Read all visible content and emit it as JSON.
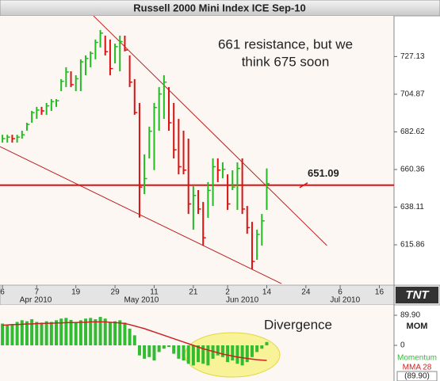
{
  "chart_data": [
    {
      "type": "ohlc",
      "title": "Russell 2000 Mini Index ICE Sep-10",
      "high": [
        680.9,
        680.9,
        680.9,
        680.9,
        683.3,
        688.0,
        695.0,
        697.4,
        697.4,
        699.7,
        702.0,
        702.0,
        713.8,
        720.8,
        718.4,
        716.1,
        725.5,
        727.8,
        730.2,
        737.2,
        742.8,
        739.5,
        737.2,
        734.8,
        739.5,
        739.5,
        727.8,
        713.8,
        699.7,
        669.3,
        685.7,
        699.7,
        709.1,
        716.1,
        709.1,
        699.7,
        690.3,
        683.3,
        678.6,
        650.5,
        648.2,
        641.2,
        652.9,
        666.9,
        666.9,
        664.6,
        657.5,
        659.9,
        664.6,
        666.9,
        638.8,
        629.4,
        624.8,
        634.1,
        661.0
      ],
      "low": [
        676.3,
        676.3,
        676.3,
        676.3,
        678.6,
        683.3,
        688.0,
        690.3,
        692.7,
        692.7,
        695.0,
        697.4,
        706.7,
        709.1,
        709.1,
        706.7,
        706.7,
        716.1,
        720.8,
        725.5,
        732.5,
        727.8,
        716.1,
        723.1,
        718.4,
        730.2,
        709.1,
        692.7,
        632.0,
        645.8,
        666.9,
        660.0,
        683.3,
        690.3,
        683.3,
        666.9,
        657.5,
        657.5,
        634.1,
        624.8,
        634.1,
        615.4,
        631.8,
        638.8,
        652.9,
        655.2,
        636.5,
        648.2,
        636.5,
        634.1,
        622.4,
        601.4,
        607.0,
        615.4,
        636.5
      ],
      "close": [
        678.6,
        679.5,
        678.6,
        679.5,
        680.9,
        687.0,
        694.0,
        695.5,
        695.0,
        698.0,
        700.5,
        701.0,
        712.5,
        718.0,
        710.5,
        714.0,
        724.0,
        726.0,
        729.0,
        735.5,
        741.0,
        730.0,
        720.0,
        733.0,
        736.0,
        731.0,
        712.0,
        694.0,
        650.0,
        655.0,
        683.0,
        697.0,
        705.0,
        712.0,
        688.0,
        672.0,
        662.0,
        660.0,
        640.0,
        645.0,
        637.0,
        620.0,
        648.0,
        662.0,
        660.0,
        660.5,
        640.0,
        650.0,
        661.0,
        637.0,
        626.0,
        606.0,
        622.0,
        630.0,
        652.0
      ],
      "color_up": "#22bb22",
      "color_down": "#dd1111",
      "xlim": [
        -0.5,
        80
      ],
      "ylim": [
        592,
        751.2
      ],
      "xticks": [
        {
          "value": 0,
          "label": "6"
        },
        {
          "value": 7,
          "label": "7"
        },
        {
          "value": 15,
          "label": "19"
        },
        {
          "value": 23,
          "label": "29"
        },
        {
          "value": 31,
          "label": "11"
        },
        {
          "value": 39,
          "label": "21"
        },
        {
          "value": 46,
          "label": "2"
        },
        {
          "value": 54,
          "label": "14"
        },
        {
          "value": 62,
          "label": "24"
        },
        {
          "value": 69,
          "label": "6"
        },
        {
          "value": 77,
          "label": "16"
        }
      ],
      "month_ticks": [
        {
          "value": 6.8,
          "label": "Apr 2010"
        },
        {
          "value": 28.4,
          "label": "May 2010"
        },
        {
          "value": 49,
          "label": "Jun 2010"
        },
        {
          "value": 70,
          "label": "Jul 2010"
        }
      ],
      "yticks": [
        615.86,
        638.11,
        660.36,
        682.62,
        704.87,
        727.13
      ],
      "level": 651.09,
      "level_color": "#dd1111",
      "trendlines": [
        {
          "x": [
            18.6,
            66.3
          ],
          "y": [
            751.2,
            615.4
          ]
        },
        {
          "x": [
            -0.5,
            57.0
          ],
          "y": [
            673.9,
            592.9
          ]
        }
      ],
      "trendline_color": "#bb2222",
      "annotations": [
        "661 resistance, but we",
        "think 675 soon"
      ],
      "logo": "TNT"
    },
    {
      "type": "combo",
      "indicator": "MOM",
      "readout": "(89.90)",
      "annotation": "Divergence",
      "xlim": [
        -0.5,
        80
      ],
      "ylim": [
        -106.5,
        120.7
      ],
      "yticks": [
        {
          "value": 89.9,
          "label": "89.90"
        },
        0
      ],
      "series": [
        {
          "name": "Momentum",
          "kind": "bar",
          "color": "#33bb33",
          "values": [
            65,
            60,
            62,
            70,
            75,
            72,
            78,
            70,
            68,
            72,
            70,
            75,
            80,
            82,
            76,
            70,
            75,
            80,
            82,
            78,
            85,
            80,
            70,
            72,
            75,
            68,
            50,
            30,
            -30,
            -40,
            -35,
            -45,
            -20,
            -10,
            -5,
            -25,
            -40,
            -45,
            -55,
            -60,
            -50,
            -55,
            -60,
            -40,
            -30,
            -35,
            -50,
            -45,
            -55,
            -60,
            -50,
            -35,
            -20,
            -10,
            10
          ]
        },
        {
          "name": "MMA 28",
          "kind": "line",
          "color": "#cc2222",
          "values": [
            60,
            61,
            62,
            62,
            63,
            64,
            64,
            65,
            65,
            66,
            66,
            67,
            67,
            68,
            68,
            68,
            69,
            69,
            70,
            70,
            70,
            70,
            69,
            68,
            67,
            65,
            62,
            58,
            54,
            50,
            45,
            40,
            35,
            30,
            25,
            20,
            15,
            10,
            5,
            0,
            -5,
            -10,
            -14,
            -18,
            -22,
            -26,
            -29,
            -32,
            -35,
            -37,
            -39,
            -41,
            -43,
            -44,
            -45
          ]
        }
      ]
    }
  ]
}
